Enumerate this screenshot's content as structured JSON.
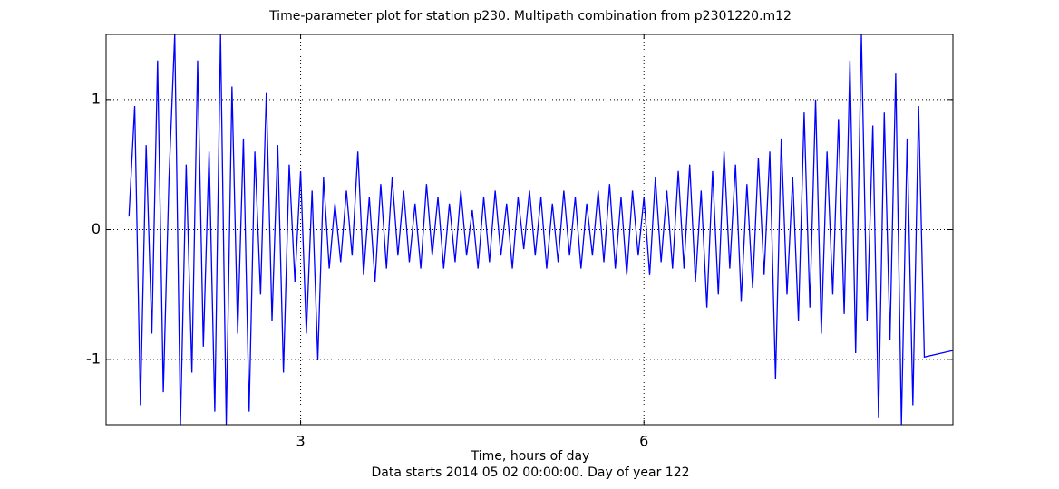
{
  "chart_data": {
    "type": "line",
    "title": "Time-parameter plot for station p230.   Multipath combination from p2301220.m12",
    "x_label_lines": [
      "Time, hours of day",
      "Data starts 2014 05 02 00:00:00.  Day of year 122"
    ],
    "x": [
      1.5,
      1.55,
      1.6,
      1.65,
      1.7,
      1.75,
      1.8,
      1.85,
      1.9,
      1.95,
      2,
      2.05,
      2.1,
      2.15,
      2.2,
      2.25,
      2.3,
      2.35,
      2.4,
      2.45,
      2.5,
      2.55,
      2.6,
      2.65,
      2.7,
      2.75,
      2.8,
      2.85,
      2.9,
      2.95,
      3,
      3.05,
      3.1,
      3.15,
      3.2,
      3.25,
      3.3,
      3.35,
      3.4,
      3.45,
      3.5,
      3.55,
      3.6,
      3.65,
      3.7,
      3.75,
      3.8,
      3.85,
      3.9,
      3.95,
      4,
      4.05,
      4.1,
      4.15,
      4.2,
      4.25,
      4.3,
      4.35,
      4.4,
      4.45,
      4.5,
      4.55,
      4.6,
      4.65,
      4.7,
      4.75,
      4.8,
      4.85,
      4.9,
      4.95,
      5,
      5.05,
      5.1,
      5.15,
      5.2,
      5.25,
      5.3,
      5.35,
      5.4,
      5.45,
      5.5,
      5.55,
      5.6,
      5.65,
      5.7,
      5.75,
      5.8,
      5.85,
      5.9,
      5.95,
      6,
      6.05,
      6.1,
      6.15,
      6.2,
      6.25,
      6.3,
      6.35,
      6.4,
      6.45,
      6.5,
      6.55,
      6.6,
      6.65,
      6.7,
      6.75,
      6.8,
      6.85,
      6.9,
      6.95,
      7,
      7.05,
      7.1,
      7.15,
      7.2,
      7.25,
      7.3,
      7.35,
      7.4,
      7.45,
      7.5,
      7.55,
      7.6,
      7.65,
      7.7,
      7.75,
      7.8,
      7.85,
      7.9,
      7.95,
      8,
      8.05,
      8.1,
      8.15,
      8.2,
      8.25,
      8.3,
      8.35,
      8.4,
      8.45,
      8.7
    ],
    "series": [
      {
        "color": "#0000ff",
        "values": [
          0.1,
          0.95,
          -1.35,
          0.65,
          -0.8,
          1.3,
          -1.25,
          0.4,
          1.5,
          -1.5,
          0.5,
          -1.1,
          1.3,
          -0.9,
          0.6,
          -1.4,
          1.5,
          -1.5,
          1.1,
          -0.8,
          0.7,
          -1.4,
          0.6,
          -0.5,
          1.05,
          -0.7,
          0.65,
          -1.1,
          0.5,
          -0.4,
          0.45,
          -0.8,
          0.3,
          -1.0,
          0.4,
          -0.3,
          0.2,
          -0.25,
          0.3,
          -0.2,
          0.6,
          -0.35,
          0.25,
          -0.4,
          0.35,
          -0.3,
          0.4,
          -0.2,
          0.3,
          -0.25,
          0.2,
          -0.3,
          0.35,
          -0.2,
          0.25,
          -0.3,
          0.2,
          -0.25,
          0.3,
          -0.2,
          0.15,
          -0.3,
          0.25,
          -0.25,
          0.3,
          -0.2,
          0.2,
          -0.3,
          0.25,
          -0.15,
          0.3,
          -0.2,
          0.25,
          -0.3,
          0.2,
          -0.25,
          0.3,
          -0.2,
          0.25,
          -0.3,
          0.2,
          -0.2,
          0.3,
          -0.25,
          0.35,
          -0.3,
          0.25,
          -0.35,
          0.3,
          -0.2,
          0.25,
          -0.35,
          0.4,
          -0.25,
          0.3,
          -0.3,
          0.45,
          -0.3,
          0.5,
          -0.4,
          0.3,
          -0.6,
          0.45,
          -0.5,
          0.6,
          -0.3,
          0.5,
          -0.55,
          0.35,
          -0.45,
          0.55,
          -0.35,
          0.6,
          -1.15,
          0.7,
          -0.5,
          0.4,
          -0.7,
          0.9,
          -0.6,
          1.0,
          -0.8,
          0.6,
          -0.5,
          0.85,
          -0.65,
          1.3,
          -0.95,
          1.5,
          -0.7,
          0.8,
          -1.45,
          0.9,
          -0.85,
          1.2,
          -1.5,
          0.7,
          -1.35,
          0.95,
          -0.98,
          -0.93
        ]
      }
    ],
    "xlim": [
      1.3,
      8.7
    ],
    "xticks": [
      3,
      6
    ],
    "ylim": [
      -1.5,
      1.5
    ],
    "yticks": [
      -1,
      0,
      1
    ],
    "grid": true
  }
}
